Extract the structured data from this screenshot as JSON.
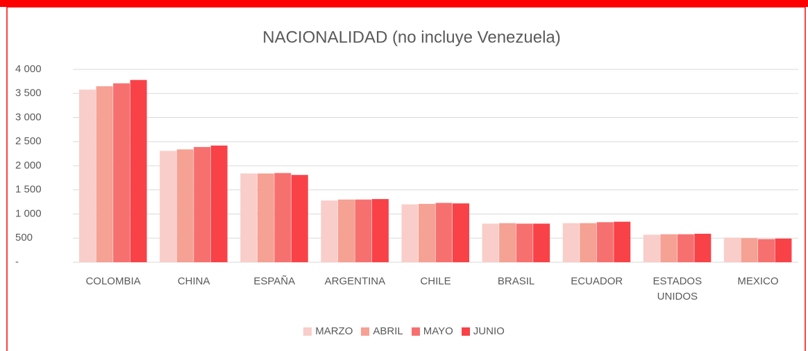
{
  "chart_data": {
    "type": "bar",
    "title": "NACIONALIDAD (no incluye Venezuela)",
    "categories": [
      "COLOMBIA",
      "CHINA",
      "ESPAÑA",
      "ARGENTINA",
      "CHILE",
      "BRASIL",
      "ECUADOR",
      "ESTADOS UNIDOS",
      "MEXICO"
    ],
    "series": [
      {
        "name": "MARZO",
        "color": "#f9cdc9",
        "values": [
          3580,
          2310,
          1840,
          1280,
          1200,
          800,
          810,
          570,
          510
        ]
      },
      {
        "name": "ABRIL",
        "color": "#f5a193",
        "values": [
          3650,
          2340,
          1840,
          1300,
          1210,
          810,
          810,
          580,
          500
        ]
      },
      {
        "name": "MAYO",
        "color": "#f77070",
        "values": [
          3710,
          2390,
          1850,
          1300,
          1230,
          800,
          830,
          580,
          480
        ]
      },
      {
        "name": "JUNIO",
        "color": "#f84248",
        "values": [
          3780,
          2420,
          1810,
          1310,
          1220,
          800,
          840,
          590,
          490
        ]
      }
    ],
    "ylim": [
      0,
      4000
    ],
    "yticks": [
      {
        "value": 0,
        "label": "-"
      },
      500,
      {
        "value": 1000,
        "label": "1 000"
      },
      {
        "value": 1500,
        "label": "1 500"
      },
      {
        "value": 2000,
        "label": "2 000"
      },
      {
        "value": 2500,
        "label": "2 500"
      },
      {
        "value": 3000,
        "label": "3 000"
      },
      {
        "value": 3500,
        "label": "3 500"
      },
      {
        "value": 4000,
        "label": "4 000"
      }
    ],
    "grid": true,
    "legend": "bottom"
  }
}
